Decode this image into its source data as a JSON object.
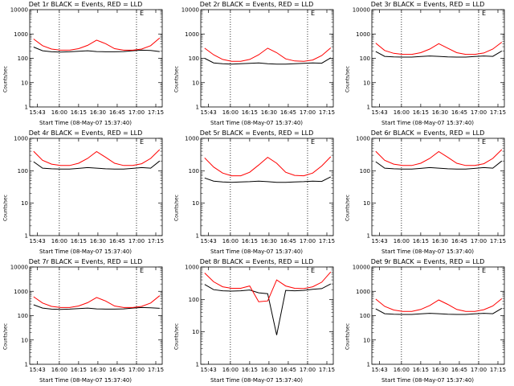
{
  "chart_data": [
    {
      "type": "line",
      "title": "Det 1r BLACK = Events, RED = LLD",
      "xlabel": "Start Time (08-May-07 15:37:40)",
      "ylabel": "Counts/sec",
      "yscale": "log",
      "ylim": [
        1,
        10000
      ],
      "yticks": [
        "1",
        "10",
        "100",
        "1000",
        "10000"
      ],
      "xticks": [
        "15:43",
        "16:00",
        "16:15",
        "16:30",
        "16:45",
        "17:00",
        "17:15"
      ],
      "markers": [
        "16:00",
        "17:00"
      ],
      "corner_mark": "E",
      "series": [
        {
          "color": "#000000",
          "values": [
            290,
            205,
            185,
            180,
            185,
            195,
            205,
            190,
            185,
            185,
            190,
            205,
            215,
            210,
            190
          ]
        },
        {
          "color": "#ff0000",
          "values": [
            620,
            330,
            240,
            215,
            215,
            250,
            340,
            560,
            400,
            250,
            215,
            215,
            240,
            330,
            680
          ]
        }
      ]
    },
    {
      "type": "line",
      "title": "Det 2r BLACK = Events, RED = LLD",
      "xlabel": "Start Time (08-May-07 15:37:40)",
      "ylabel": "Counts/sec",
      "yscale": "log",
      "ylim": [
        1,
        10000
      ],
      "yticks": [
        "1",
        "10",
        "100",
        "1000",
        "10000"
      ],
      "xticks": [
        "15:43",
        "16:00",
        "16:15",
        "16:30",
        "16:45",
        "17:00",
        "17:15"
      ],
      "markers": [
        "16:00",
        "17:00"
      ],
      "corner_mark": "E",
      "series": [
        {
          "color": "#000000",
          "values": [
            100,
            65,
            60,
            58,
            60,
            62,
            65,
            60,
            58,
            58,
            60,
            62,
            65,
            63,
            105
          ]
        },
        {
          "color": "#ff0000",
          "values": [
            260,
            140,
            90,
            75,
            75,
            90,
            140,
            260,
            170,
            95,
            78,
            75,
            85,
            130,
            270
          ]
        }
      ]
    },
    {
      "type": "line",
      "title": "Det 3r BLACK = Events, RED = LLD",
      "xlabel": "Start Time (08-May-07 15:37:40)",
      "ylabel": "Counts/sec",
      "yscale": "log",
      "ylim": [
        1,
        10000
      ],
      "yticks": [
        "1",
        "10",
        "100",
        "1000",
        "10000"
      ],
      "xticks": [
        "15:43",
        "16:00",
        "16:15",
        "16:30",
        "16:45",
        "17:00",
        "17:15"
      ],
      "markers": [
        "16:00",
        "17:00"
      ],
      "corner_mark": "E",
      "series": [
        {
          "color": "#000000",
          "values": [
            190,
            120,
            115,
            112,
            112,
            118,
            125,
            120,
            115,
            112,
            112,
            118,
            125,
            120,
            200
          ]
        },
        {
          "color": "#ff0000",
          "values": [
            420,
            210,
            160,
            145,
            145,
            170,
            240,
            400,
            260,
            170,
            145,
            145,
            165,
            240,
            460
          ]
        }
      ]
    },
    {
      "type": "line",
      "title": "Det 4r BLACK = Events, RED = LLD",
      "xlabel": "Start Time (08-May-07 15:37:40)",
      "ylabel": "Counts/sec",
      "yscale": "log",
      "ylim": [
        1,
        1000
      ],
      "yticks": [
        "1",
        "10",
        "100",
        "1000"
      ],
      "xticks": [
        "15:43",
        "16:00",
        "16:15",
        "16:30",
        "16:45",
        "17:00",
        "17:15"
      ],
      "markers": [
        "16:00",
        "17:00"
      ],
      "corner_mark": "E",
      "series": [
        {
          "color": "#000000",
          "values": [
            190,
            120,
            115,
            112,
            112,
            118,
            125,
            120,
            115,
            112,
            112,
            118,
            125,
            120,
            200
          ]
        },
        {
          "color": "#ff0000",
          "values": [
            400,
            210,
            160,
            145,
            145,
            170,
            240,
            390,
            260,
            170,
            145,
            145,
            165,
            240,
            450
          ]
        }
      ]
    },
    {
      "type": "line",
      "title": "Det 5r BLACK = Events, RED = LLD",
      "xlabel": "Start Time (08-May-07 15:37:40)",
      "ylabel": "Counts/sec",
      "yscale": "log",
      "ylim": [
        1,
        1000
      ],
      "yticks": [
        "1",
        "10",
        "100",
        "1000"
      ],
      "xticks": [
        "15:43",
        "16:00",
        "16:15",
        "16:30",
        "16:45",
        "17:00",
        "17:15"
      ],
      "markers": [
        "16:00",
        "17:00"
      ],
      "corner_mark": "E",
      "series": [
        {
          "color": "#000000",
          "values": [
            60,
            48,
            45,
            44,
            45,
            46,
            48,
            46,
            44,
            44,
            45,
            46,
            48,
            47,
            65
          ]
        },
        {
          "color": "#ff0000",
          "values": [
            250,
            130,
            85,
            70,
            70,
            90,
            150,
            260,
            170,
            90,
            72,
            70,
            85,
            140,
            270
          ]
        }
      ]
    },
    {
      "type": "line",
      "title": "Det 6r BLACK = Events, RED = LLD",
      "xlabel": "Start Time (08-May-07 15:37:40)",
      "ylabel": "Counts/sec",
      "yscale": "log",
      "ylim": [
        1,
        1000
      ],
      "yticks": [
        "1",
        "10",
        "100",
        "1000"
      ],
      "xticks": [
        "15:43",
        "16:00",
        "16:15",
        "16:30",
        "16:45",
        "17:00",
        "17:15"
      ],
      "markers": [
        "16:00",
        "17:00"
      ],
      "corner_mark": "E",
      "series": [
        {
          "color": "#000000",
          "values": [
            190,
            120,
            115,
            112,
            112,
            118,
            125,
            120,
            115,
            112,
            112,
            118,
            125,
            120,
            200
          ]
        },
        {
          "color": "#ff0000",
          "values": [
            400,
            210,
            160,
            145,
            145,
            170,
            240,
            390,
            260,
            170,
            145,
            145,
            165,
            240,
            450
          ]
        }
      ]
    },
    {
      "type": "line",
      "title": "Det 7r BLACK = Events, RED = LLD",
      "xlabel": "Start Time (08-May-07 15:37:40)",
      "ylabel": "Counts/sec",
      "yscale": "log",
      "ylim": [
        1,
        10000
      ],
      "yticks": [
        "1",
        "10",
        "100",
        "1000",
        "10000"
      ],
      "xticks": [
        "15:43",
        "16:00",
        "16:15",
        "16:30",
        "16:45",
        "17:00",
        "17:15"
      ],
      "markers": [
        "16:00",
        "17:00"
      ],
      "corner_mark": "E",
      "series": [
        {
          "color": "#000000",
          "values": [
            280,
            205,
            185,
            180,
            185,
            195,
            205,
            190,
            185,
            185,
            190,
            205,
            215,
            210,
            200
          ]
        },
        {
          "color": "#ff0000",
          "values": [
            600,
            330,
            240,
            215,
            215,
            250,
            340,
            560,
            400,
            250,
            215,
            215,
            240,
            330,
            660
          ]
        }
      ]
    },
    {
      "type": "line",
      "title": "Det 8r BLACK = Events, RED = LLD",
      "xlabel": "Start Time (08-May-07 15:37:40)",
      "ylabel": "Counts/sec",
      "yscale": "log",
      "ylim": [
        1,
        1000
      ],
      "yticks": [
        "1",
        "10",
        "100",
        "1000"
      ],
      "xticks": [
        "15:43",
        "16:00",
        "16:15",
        "16:30",
        "16:45",
        "17:00",
        "17:15"
      ],
      "markers": [
        "16:00",
        "17:00"
      ],
      "corner_mark": "E",
      "series": [
        {
          "color": "#000000",
          "values": [
            290,
            200,
            185,
            180,
            185,
            195,
            160,
            150,
            8,
            190,
            185,
            190,
            205,
            215,
            300
          ]
        },
        {
          "color": "#ff0000",
          "values": [
            650,
            350,
            245,
            220,
            220,
            260,
            85,
            90,
            400,
            260,
            220,
            215,
            245,
            340,
            700
          ]
        }
      ]
    },
    {
      "type": "line",
      "title": "Det 9r BLACK = Events, RED = LLD",
      "xlabel": "Start Time (08-May-07 15:37:40)",
      "ylabel": "Counts/sec",
      "yscale": "log",
      "ylim": [
        1,
        10000
      ],
      "yticks": [
        "1",
        "10",
        "100",
        "1000",
        "10000"
      ],
      "xticks": [
        "15:43",
        "16:00",
        "16:15",
        "16:30",
        "16:45",
        "17:00",
        "17:15"
      ],
      "markers": [
        "16:00",
        "17:00"
      ],
      "corner_mark": "E",
      "series": [
        {
          "color": "#000000",
          "values": [
            190,
            120,
            115,
            112,
            112,
            118,
            125,
            120,
            115,
            112,
            112,
            118,
            125,
            120,
            200
          ]
        },
        {
          "color": "#ff0000",
          "values": [
            480,
            240,
            170,
            150,
            150,
            180,
            260,
            440,
            290,
            180,
            150,
            150,
            175,
            250,
            500
          ]
        }
      ]
    }
  ]
}
